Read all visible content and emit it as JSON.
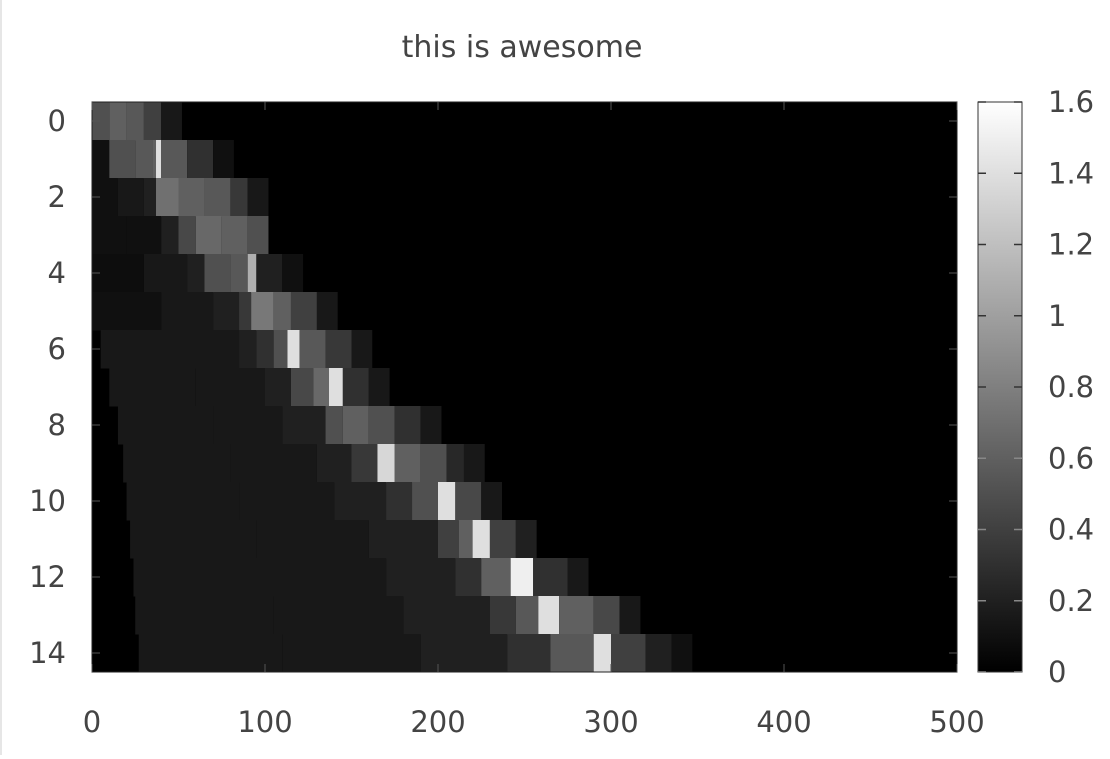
{
  "chart_data": {
    "type": "heatmap",
    "title": "this is awesome",
    "xlabel": "",
    "ylabel": "",
    "x_range": [
      0,
      500
    ],
    "y_range": [
      0,
      14
    ],
    "x_ticks": [
      0,
      100,
      200,
      300,
      400,
      500
    ],
    "y_ticks": [
      0,
      2,
      4,
      6,
      8,
      10,
      12,
      14
    ],
    "y_inverted": true,
    "colormap": "gray",
    "colorbar": {
      "range": [
        0,
        1.6
      ],
      "ticks": [
        0,
        0.2,
        0.4,
        0.6,
        0.8,
        1,
        1.2,
        1.4,
        1.6
      ]
    },
    "rows": [
      {
        "row": 0,
        "values": [
          [
            0,
            0.5
          ],
          [
            10,
            0.6
          ],
          [
            20,
            0.55
          ],
          [
            30,
            0.4
          ],
          [
            40,
            0.15
          ]
        ]
      },
      {
        "row": 1,
        "values": [
          [
            0,
            0.1
          ],
          [
            10,
            0.5
          ],
          [
            25,
            0.55
          ],
          [
            35,
            0.6
          ],
          [
            37,
            1.4
          ],
          [
            40,
            0.55
          ],
          [
            55,
            0.3
          ],
          [
            70,
            0.1
          ]
        ]
      },
      {
        "row": 2,
        "values": [
          [
            0,
            0.1
          ],
          [
            15,
            0.15
          ],
          [
            30,
            0.2
          ],
          [
            37,
            0.7
          ],
          [
            50,
            0.6
          ],
          [
            65,
            0.55
          ],
          [
            80,
            0.35
          ],
          [
            90,
            0.15
          ]
        ]
      },
      {
        "row": 3,
        "values": [
          [
            0,
            0.1
          ],
          [
            20,
            0.1
          ],
          [
            40,
            0.2
          ],
          [
            50,
            0.45
          ],
          [
            60,
            0.65
          ],
          [
            75,
            0.6
          ],
          [
            90,
            0.5
          ]
        ]
      },
      {
        "row": 4,
        "values": [
          [
            0,
            0.08
          ],
          [
            30,
            0.15
          ],
          [
            55,
            0.2
          ],
          [
            65,
            0.5
          ],
          [
            80,
            0.55
          ],
          [
            90,
            1.1
          ],
          [
            95,
            0.2
          ],
          [
            110,
            0.1
          ]
        ]
      },
      {
        "row": 5,
        "values": [
          [
            0,
            0.1
          ],
          [
            40,
            0.15
          ],
          [
            70,
            0.2
          ],
          [
            85,
            0.35
          ],
          [
            92,
            0.75
          ],
          [
            105,
            0.6
          ],
          [
            115,
            0.4
          ],
          [
            130,
            0.15
          ]
        ]
      },
      {
        "row": 6,
        "values": [
          [
            5,
            0.15
          ],
          [
            50,
            0.15
          ],
          [
            85,
            0.2
          ],
          [
            95,
            0.3
          ],
          [
            105,
            0.5
          ],
          [
            113,
            1.4
          ],
          [
            120,
            0.55
          ],
          [
            135,
            0.35
          ],
          [
            150,
            0.15
          ]
        ]
      },
      {
        "row": 7,
        "values": [
          [
            10,
            0.15
          ],
          [
            60,
            0.15
          ],
          [
            100,
            0.2
          ],
          [
            115,
            0.45
          ],
          [
            128,
            0.65
          ],
          [
            137,
            1.4
          ],
          [
            145,
            0.3
          ],
          [
            160,
            0.15
          ]
        ]
      },
      {
        "row": 8,
        "values": [
          [
            15,
            0.15
          ],
          [
            70,
            0.15
          ],
          [
            110,
            0.2
          ],
          [
            135,
            0.5
          ],
          [
            145,
            0.6
          ],
          [
            160,
            0.5
          ],
          [
            175,
            0.3
          ],
          [
            190,
            0.15
          ]
        ]
      },
      {
        "row": 9,
        "values": [
          [
            18,
            0.15
          ],
          [
            80,
            0.15
          ],
          [
            130,
            0.2
          ],
          [
            150,
            0.35
          ],
          [
            165,
            1.35
          ],
          [
            175,
            0.6
          ],
          [
            190,
            0.5
          ],
          [
            205,
            0.25
          ],
          [
            215,
            0.15
          ]
        ]
      },
      {
        "row": 10,
        "values": [
          [
            20,
            0.15
          ],
          [
            85,
            0.15
          ],
          [
            140,
            0.2
          ],
          [
            170,
            0.3
          ],
          [
            185,
            0.5
          ],
          [
            200,
            1.4
          ],
          [
            210,
            0.45
          ],
          [
            225,
            0.15
          ]
        ]
      },
      {
        "row": 11,
        "values": [
          [
            22,
            0.15
          ],
          [
            95,
            0.15
          ],
          [
            160,
            0.2
          ],
          [
            200,
            0.4
          ],
          [
            212,
            0.6
          ],
          [
            220,
            1.4
          ],
          [
            230,
            0.4
          ],
          [
            245,
            0.2
          ]
        ]
      },
      {
        "row": 12,
        "values": [
          [
            24,
            0.15
          ],
          [
            100,
            0.15
          ],
          [
            170,
            0.2
          ],
          [
            210,
            0.3
          ],
          [
            225,
            0.6
          ],
          [
            242,
            1.5
          ],
          [
            255,
            0.3
          ],
          [
            275,
            0.15
          ]
        ]
      },
      {
        "row": 13,
        "values": [
          [
            25,
            0.15
          ],
          [
            105,
            0.15
          ],
          [
            180,
            0.2
          ],
          [
            230,
            0.35
          ],
          [
            245,
            0.55
          ],
          [
            258,
            1.4
          ],
          [
            270,
            0.6
          ],
          [
            290,
            0.45
          ],
          [
            305,
            0.15
          ]
        ]
      },
      {
        "row": 14,
        "values": [
          [
            27,
            0.15
          ],
          [
            110,
            0.15
          ],
          [
            190,
            0.2
          ],
          [
            240,
            0.3
          ],
          [
            265,
            0.55
          ],
          [
            290,
            1.4
          ],
          [
            300,
            0.4
          ],
          [
            320,
            0.2
          ],
          [
            335,
            0.1
          ]
        ]
      }
    ]
  }
}
